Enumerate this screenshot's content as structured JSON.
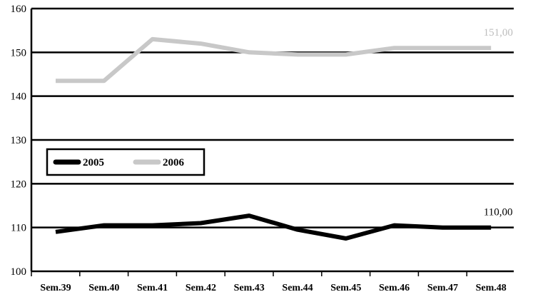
{
  "chart_data": {
    "type": "line",
    "title": "",
    "xlabel": "",
    "ylabel": "",
    "categories": [
      "Sem.39",
      "Sem.40",
      "Sem.41",
      "Sem.42",
      "Sem.43",
      "Sem.44",
      "Sem.45",
      "Sem.46",
      "Sem.47",
      "Sem.48"
    ],
    "ylim": [
      100,
      160
    ],
    "yticks": [
      100,
      110,
      120,
      130,
      140,
      150,
      160
    ],
    "grid": true,
    "legend_position": "middle-left",
    "series": [
      {
        "name": "2005",
        "color": "#000000",
        "values": [
          109,
          110.5,
          110.5,
          111,
          112.7,
          109.5,
          107.5,
          110.5,
          110,
          110
        ],
        "end_label": "110,00"
      },
      {
        "name": "2006",
        "color": "#c8c8c8",
        "values": [
          143.5,
          143.5,
          153,
          152,
          150,
          149.5,
          149.5,
          151,
          151,
          151
        ],
        "end_label": "151,00"
      }
    ]
  }
}
